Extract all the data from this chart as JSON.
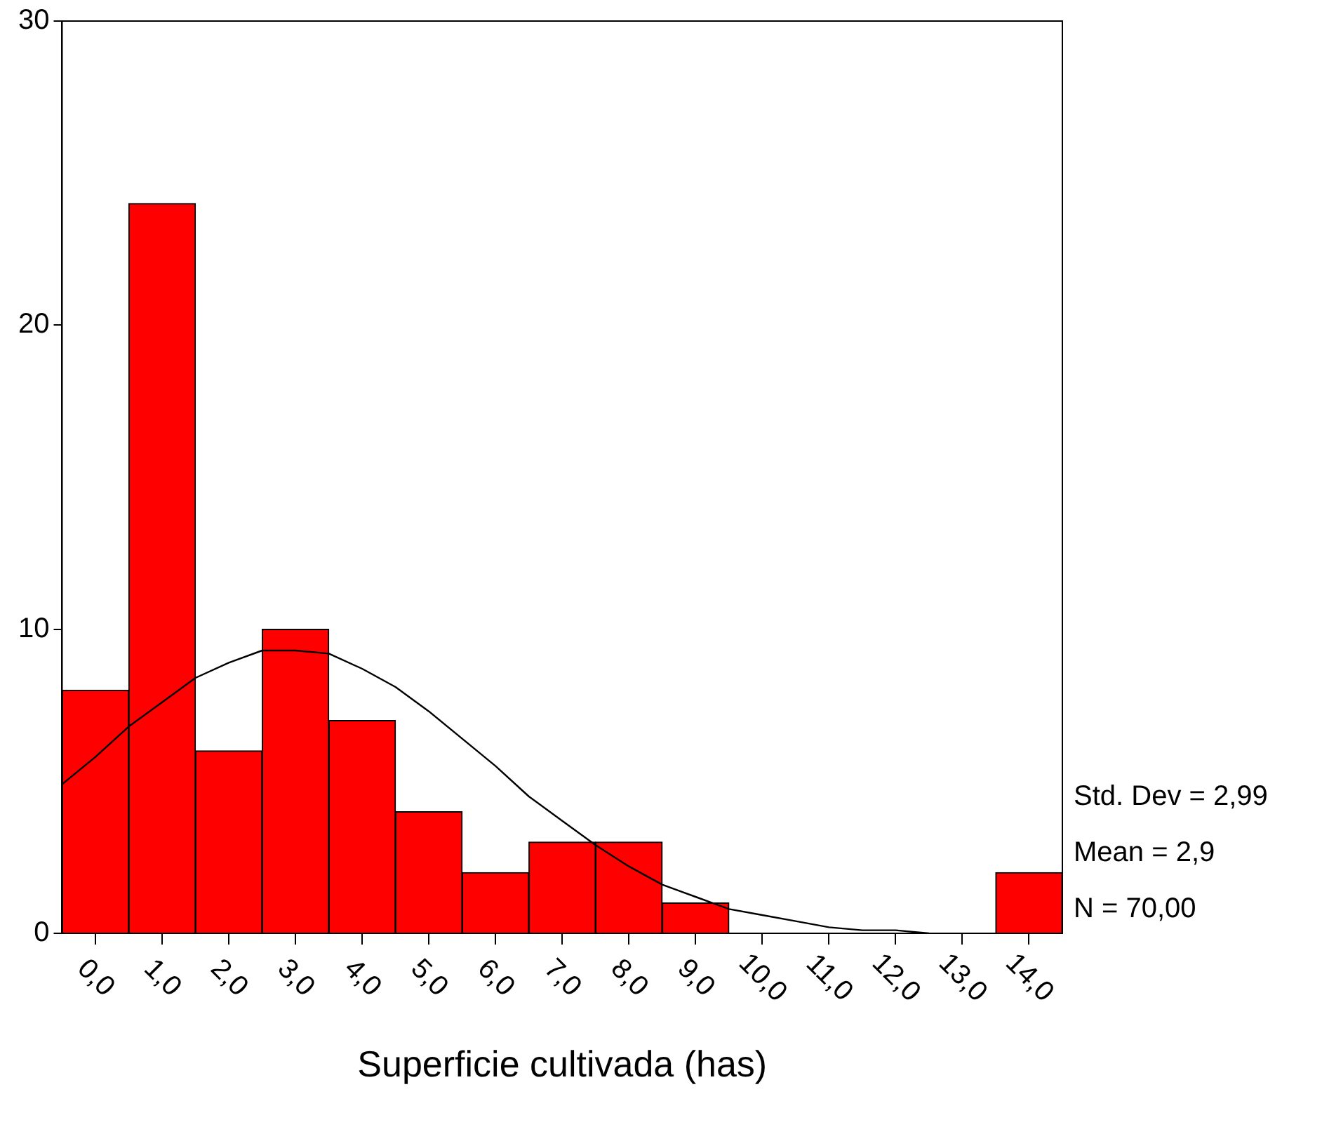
{
  "chart_data": {
    "type": "histogram",
    "xlabel": "Superficie cultivada (has)",
    "bins": [
      -0.5,
      0.5,
      1.5,
      2.5,
      3.5,
      4.5,
      5.5,
      6.5,
      7.5,
      8.5,
      9.5,
      10.5,
      11.5,
      12.5,
      13.5,
      14.5
    ],
    "values": [
      8,
      24,
      6,
      10,
      7,
      4,
      2,
      3,
      3,
      1,
      0,
      0,
      0,
      0,
      2
    ],
    "color": "#ff0000",
    "series": [
      {
        "type": "line",
        "color": "#000000",
        "x": [
          -0.5,
          0,
          0.5,
          1,
          1.5,
          2,
          2.5,
          3,
          3.5,
          4,
          4.5,
          5,
          5.5,
          6,
          6.5,
          7,
          7.5,
          8,
          8.5,
          9,
          9.5,
          10,
          10.5,
          11,
          11.5,
          12,
          12.5
        ],
        "values": [
          4.9,
          5.8,
          6.8,
          7.6,
          8.4,
          8.9,
          9.3,
          9.3,
          9.2,
          8.7,
          8.1,
          7.3,
          6.4,
          5.5,
          4.5,
          3.7,
          2.9,
          2.2,
          1.6,
          1.2,
          0.8,
          0.6,
          0.4,
          0.2,
          0.1,
          0.1,
          0
        ]
      }
    ],
    "xlim": [
      -0.5,
      14.5
    ],
    "xticks": [
      {
        "value": 0,
        "label": "0,0"
      },
      {
        "value": 1,
        "label": "1,0"
      },
      {
        "value": 2,
        "label": "2,0"
      },
      {
        "value": 3,
        "label": "3,0"
      },
      {
        "value": 4,
        "label": "4,0"
      },
      {
        "value": 5,
        "label": "5,0"
      },
      {
        "value": 6,
        "label": "6,0"
      },
      {
        "value": 7,
        "label": "7,0"
      },
      {
        "value": 8,
        "label": "8,0"
      },
      {
        "value": 9,
        "label": "9,0"
      },
      {
        "value": 10,
        "label": "10,0"
      },
      {
        "value": 11,
        "label": "11,0"
      },
      {
        "value": 12,
        "label": "12,0"
      },
      {
        "value": 13,
        "label": "13,0"
      },
      {
        "value": 14,
        "label": "14,0"
      }
    ],
    "ylim": [
      0,
      30
    ],
    "yticks": [
      0,
      10,
      20,
      30
    ],
    "annotations": [
      "Std. Dev = 2,99",
      "Mean = 2,9",
      "N = 70,00"
    ],
    "grid": false,
    "legend": false
  }
}
